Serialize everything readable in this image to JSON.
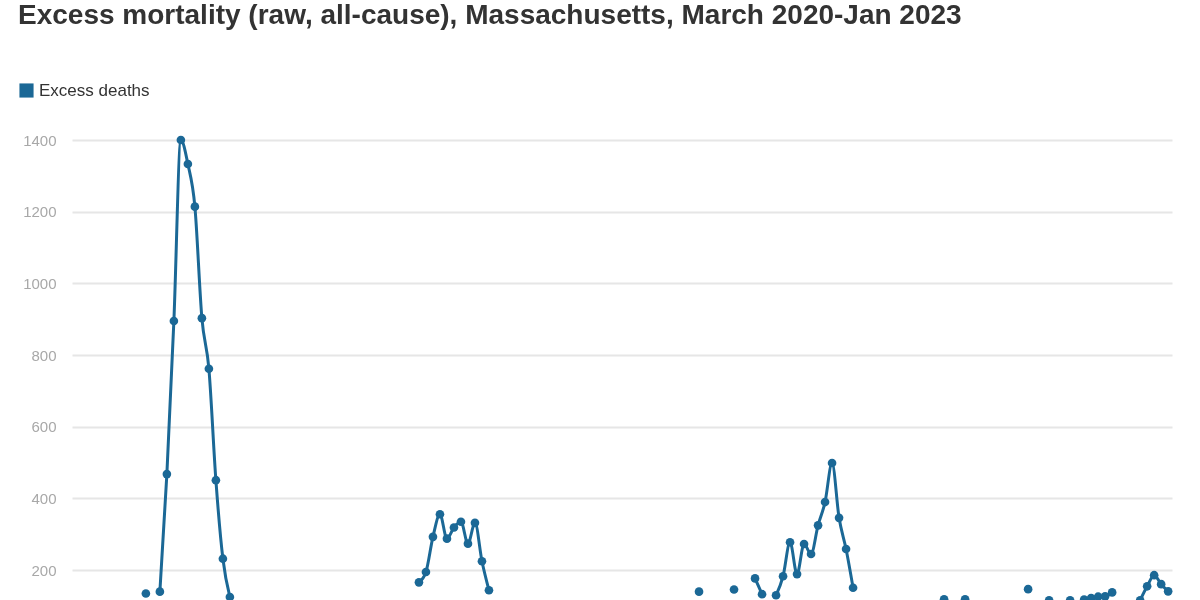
{
  "chart_data": {
    "type": "line",
    "title": "Excess mortality (raw, all-cause), Massachusetts, March 2020-Jan 2023",
    "categories": [
      null,
      null,
      null,
      null,
      null,
      null,
      null,
      null,
      null,
      null,
      null,
      null,
      null,
      null,
      null,
      null,
      null,
      null,
      null,
      null,
      null,
      null,
      null,
      null,
      null,
      null,
      null,
      null,
      null,
      null,
      null,
      null,
      null,
      null,
      null,
      null,
      null,
      null,
      null,
      null,
      null,
      null,
      null,
      null,
      null,
      null,
      null,
      null,
      null,
      null,
      null,
      null,
      null,
      null,
      null,
      null,
      null,
      null,
      null,
      null,
      null,
      null,
      null,
      null,
      null,
      null,
      null,
      null,
      null,
      null,
      null,
      null,
      null,
      null,
      null,
      null,
      null,
      null,
      null,
      null,
      null,
      null,
      null,
      null,
      null,
      null,
      null,
      null,
      null,
      null,
      null,
      null,
      null,
      null,
      null,
      null,
      null,
      null,
      null,
      null,
      null,
      null,
      null,
      null,
      null,
      null,
      null,
      null,
      null,
      null,
      null,
      null,
      null,
      null,
      null,
      null,
      null,
      null,
      null,
      null,
      null,
      null,
      null,
      null,
      null,
      null,
      null,
      null,
      null,
      null,
      null,
      null,
      null,
      null,
      null,
      null,
      null,
      null,
      null,
      null,
      null,
      null,
      null,
      null,
      null,
      null,
      null,
      null,
      null,
      null,
      null,
      null,
      null,
      null,
      null,
      null,
      null
    ],
    "series": [
      {
        "name": "Excess deaths",
        "color": "#1b6896",
        "values": [
          null,
          null,
          null,
          null,
          null,
          null,
          null,
          null,
          null,
          null,
          135,
          null,
          140,
          468,
          895,
          1400,
          1333,
          1214,
          903,
          762,
          451,
          232,
          125,
          null,
          null,
          null,
          null,
          null,
          null,
          null,
          null,
          null,
          null,
          null,
          null,
          null,
          null,
          null,
          null,
          null,
          null,
          null,
          null,
          null,
          null,
          null,
          null,
          null,
          null,
          166,
          195,
          293,
          356,
          288,
          319,
          335,
          274,
          332,
          225,
          144,
          null,
          null,
          null,
          null,
          null,
          null,
          null,
          null,
          null,
          null,
          null,
          null,
          null,
          null,
          null,
          null,
          null,
          null,
          null,
          null,
          null,
          null,
          null,
          null,
          null,
          null,
          null,
          null,
          null,
          140,
          null,
          null,
          null,
          null,
          146,
          null,
          null,
          177,
          133,
          null,
          130,
          183,
          278,
          189,
          273,
          245,
          325,
          390,
          499,
          346,
          259,
          151,
          null,
          null,
          null,
          null,
          null,
          null,
          null,
          null,
          null,
          null,
          null,
          null,
          119,
          null,
          null,
          119,
          null,
          null,
          null,
          null,
          null,
          null,
          null,
          null,
          147,
          null,
          null,
          116,
          null,
          null,
          116,
          null,
          118,
          122,
          126,
          127,
          138,
          null,
          null,
          null,
          116,
          155,
          186,
          161,
          141
        ]
      }
    ],
    "ylim": [
      114,
      1400
    ],
    "yticks": [
      200,
      400,
      600,
      800,
      1000,
      1200,
      1400
    ],
    "grid": "y",
    "legend": "top left",
    "tick_labels": "y",
    "marker": "circle",
    "line_style": "solid"
  }
}
